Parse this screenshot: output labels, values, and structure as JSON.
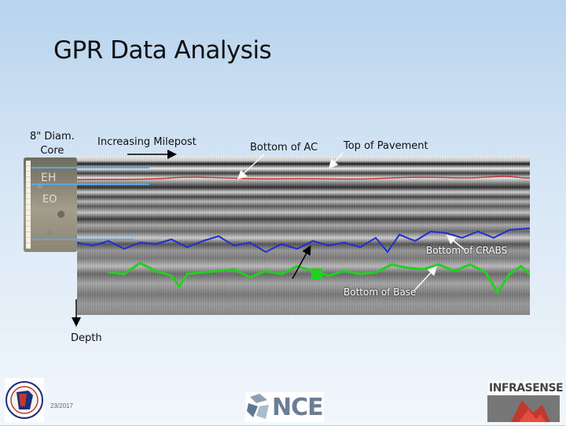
{
  "slide": {
    "title": "GPR Data Analysis",
    "date": "23/2017"
  },
  "labels": {
    "core_line1": "8\" Diam.",
    "core_line2": "Core",
    "core_mark1": "EH",
    "core_mark2": "EO",
    "milepost": "Increasing Milepost",
    "bottom_ac": "Bottom of AC",
    "top_pavement": "Top of Pavement",
    "bottom_crabs": "Bottom of CRABS",
    "bottom_base": "Bottom of Base",
    "depth": "Depth"
  },
  "logos": {
    "nce": "NCE",
    "infrasense": "INFRASENSE"
  },
  "colors": {
    "top_pavement_line": "#c0392b",
    "bottom_ac_line": "#5aa9e6",
    "crabs_line": "#1f2fd0",
    "base_line": "#22d022"
  }
}
